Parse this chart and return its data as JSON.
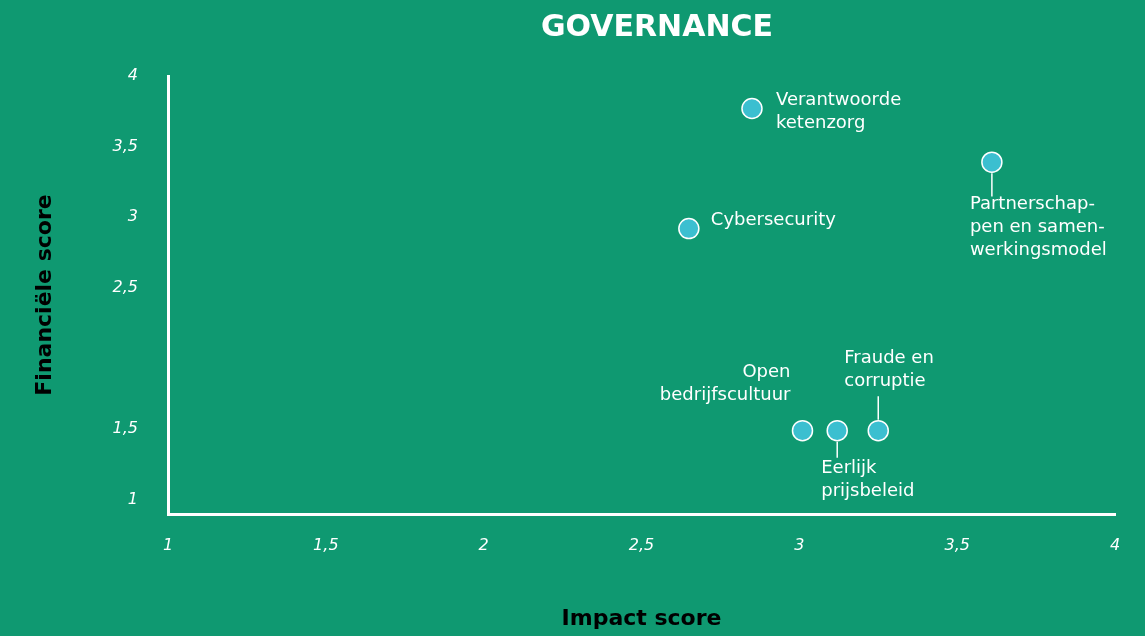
{
  "chart_data": {
    "type": "scatter",
    "title": "GOVERNANCE",
    "xlabel": "Impact score",
    "ylabel": "Financiële score",
    "series": [
      {
        "color": "#3bbfd0",
        "x": [
          2.85,
          3.61,
          2.65,
          3.01,
          3.12,
          3.25
        ],
        "values": [
          3.77,
          3.39,
          2.92,
          1.49,
          1.49,
          1.49
        ]
      }
    ],
    "annotations": [
      {
        "text": "Verantwoorde\nketenzorg",
        "x": 2.85,
        "y": 3.77
      },
      {
        "text": "Partnerschap-\npen en samen-\nwerkingsmodel",
        "x": 3.61,
        "y": 3.39
      },
      {
        "text": "Cybersecurity",
        "x": 2.65,
        "y": 2.92
      },
      {
        "text": "Open\nbedrijfscultuur",
        "x": 3.01,
        "y": 1.49
      },
      {
        "text": "Eerlijk\nprijsbeleid",
        "x": 3.12,
        "y": 1.49
      },
      {
        "text": "Fraude en\ncorruptie",
        "x": 3.25,
        "y": 1.49
      }
    ],
    "xlim": [
      1,
      4
    ],
    "xticks": [
      1,
      {
        "value": 1.5,
        "label": "1,5"
      },
      2,
      {
        "value": 2.5,
        "label": "2,5"
      },
      3,
      {
        "value": 3.5,
        "label": "3,5"
      },
      4
    ],
    "ylim": [
      0.9,
      4
    ],
    "yticks": [
      1,
      {
        "value": 1.5,
        "label": "1,5"
      },
      {
        "value": 2.5,
        "label": "2,5"
      },
      3,
      {
        "value": 3.5,
        "label": "3,5"
      },
      4
    ],
    "grid": false,
    "legend": false,
    "marker": "circle"
  }
}
